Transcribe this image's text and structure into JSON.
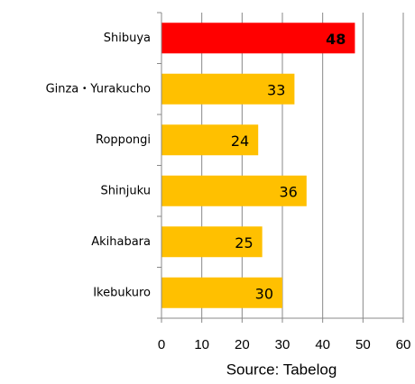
{
  "chart_data": {
    "type": "barh",
    "categories": [
      "Shibuya",
      "Ginza・Yurakucho",
      "Roppongi",
      "Shinjuku",
      "Akihabara",
      "Ikebukuro"
    ],
    "values": [
      48,
      33,
      24,
      36,
      25,
      30
    ],
    "colors": [
      "#FF0000",
      "#FFC000",
      "#FFC000",
      "#FFC000",
      "#FFC000",
      "#FFC000"
    ],
    "xlabel": "Source: Tabelog",
    "xlim": [
      0,
      60
    ],
    "xticks": [
      0,
      10,
      20,
      30,
      40,
      50,
      60
    ],
    "grid": true
  }
}
